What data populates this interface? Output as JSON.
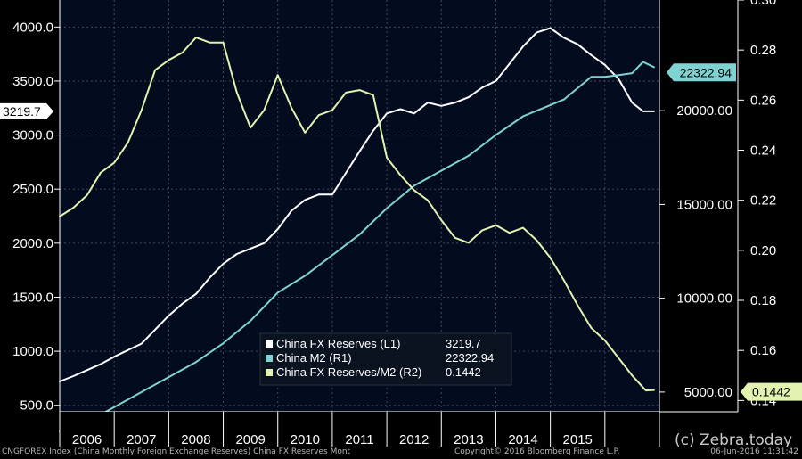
{
  "chart_data": {
    "type": "line",
    "x_labels": [
      "2006",
      "2007",
      "2008",
      "2009",
      "2010",
      "2011",
      "2012",
      "2013",
      "2014",
      "2015"
    ],
    "x_range": [
      2005.5,
      2016.5
    ],
    "left_axis": {
      "ticks": [
        "500.0",
        "1000.0",
        "1500.0",
        "2000.0",
        "2500.0",
        "3000.0",
        "3500.0",
        "4000.0"
      ],
      "range": [
        440,
        4250
      ]
    },
    "right1_axis": {
      "ticks": [
        "5000.00",
        "10000.00",
        "15000.00",
        "20000.00"
      ],
      "range": [
        3950,
        25900
      ]
    },
    "right2_axis": {
      "ticks": [
        "0.14",
        "0.16",
        "0.18",
        "0.20",
        "0.22",
        "0.24",
        "0.26",
        "0.28",
        "0.30"
      ],
      "range": [
        0.1355,
        0.3
      ]
    },
    "series": [
      {
        "name": "China FX Reserves (L1)",
        "axis": "left",
        "color": "#ffffff",
        "last_value_label": "3219.7",
        "points": [
          [
            2005.5,
            720
          ],
          [
            2005.75,
            770
          ],
          [
            2006.0,
            825
          ],
          [
            2006.25,
            880
          ],
          [
            2006.5,
            950
          ],
          [
            2006.75,
            1010
          ],
          [
            2007.0,
            1070
          ],
          [
            2007.25,
            1200
          ],
          [
            2007.5,
            1330
          ],
          [
            2007.75,
            1440
          ],
          [
            2008.0,
            1530
          ],
          [
            2008.25,
            1680
          ],
          [
            2008.5,
            1810
          ],
          [
            2008.75,
            1900
          ],
          [
            2009.0,
            1950
          ],
          [
            2009.25,
            2000
          ],
          [
            2009.5,
            2130
          ],
          [
            2009.75,
            2300
          ],
          [
            2010.0,
            2400
          ],
          [
            2010.25,
            2450
          ],
          [
            2010.5,
            2450
          ],
          [
            2010.75,
            2650
          ],
          [
            2011.0,
            2850
          ],
          [
            2011.25,
            3040
          ],
          [
            2011.5,
            3200
          ],
          [
            2011.75,
            3240
          ],
          [
            2012.0,
            3200
          ],
          [
            2012.25,
            3300
          ],
          [
            2012.5,
            3270
          ],
          [
            2012.75,
            3300
          ],
          [
            2013.0,
            3350
          ],
          [
            2013.25,
            3440
          ],
          [
            2013.5,
            3500
          ],
          [
            2013.75,
            3660
          ],
          [
            2014.0,
            3820
          ],
          [
            2014.25,
            3950
          ],
          [
            2014.5,
            3990
          ],
          [
            2014.75,
            3900
          ],
          [
            2015.0,
            3840
          ],
          [
            2015.25,
            3740
          ],
          [
            2015.5,
            3650
          ],
          [
            2015.75,
            3520
          ],
          [
            2016.0,
            3300
          ],
          [
            2016.2,
            3220
          ],
          [
            2016.4,
            3219.7
          ]
        ]
      },
      {
        "name": "China M2 (R1)",
        "axis": "right1",
        "color": "#7fd3d3",
        "last_value_label": "22322.94",
        "points": [
          [
            2005.5,
            2900
          ],
          [
            2006.0,
            3400
          ],
          [
            2006.5,
            4200
          ],
          [
            2007.0,
            5000
          ],
          [
            2007.5,
            5800
          ],
          [
            2008.0,
            6600
          ],
          [
            2008.5,
            7600
          ],
          [
            2008.75,
            8200
          ],
          [
            2009.0,
            8800
          ],
          [
            2009.5,
            10300
          ],
          [
            2010.0,
            11200
          ],
          [
            2010.5,
            12300
          ],
          [
            2011.0,
            13400
          ],
          [
            2011.5,
            14800
          ],
          [
            2012.0,
            16000
          ],
          [
            2012.5,
            16800
          ],
          [
            2013.0,
            17600
          ],
          [
            2013.5,
            18700
          ],
          [
            2014.0,
            19700
          ],
          [
            2014.5,
            20300
          ],
          [
            2014.75,
            20600
          ],
          [
            2015.0,
            21200
          ],
          [
            2015.25,
            21800
          ],
          [
            2015.5,
            21800
          ],
          [
            2015.75,
            21900
          ],
          [
            2016.0,
            22000
          ],
          [
            2016.2,
            22600
          ],
          [
            2016.4,
            22322.94
          ]
        ]
      },
      {
        "name": "China FX Reserves/M2 (R2)",
        "axis": "right2",
        "color": "#e2f2b0",
        "last_value_label": "0.1442",
        "points": [
          [
            2005.5,
            0.2135
          ],
          [
            2005.75,
            0.217
          ],
          [
            2006.0,
            0.222
          ],
          [
            2006.25,
            0.231
          ],
          [
            2006.5,
            0.235
          ],
          [
            2006.75,
            0.243
          ],
          [
            2007.0,
            0.256
          ],
          [
            2007.25,
            0.272
          ],
          [
            2007.5,
            0.276
          ],
          [
            2007.75,
            0.279
          ],
          [
            2008.0,
            0.285
          ],
          [
            2008.25,
            0.283
          ],
          [
            2008.5,
            0.283
          ],
          [
            2008.75,
            0.263
          ],
          [
            2009.0,
            0.249
          ],
          [
            2009.25,
            0.256
          ],
          [
            2009.5,
            0.27
          ],
          [
            2009.75,
            0.257
          ],
          [
            2010.0,
            0.247
          ],
          [
            2010.25,
            0.254
          ],
          [
            2010.5,
            0.256
          ],
          [
            2010.75,
            0.263
          ],
          [
            2011.0,
            0.264
          ],
          [
            2011.25,
            0.262
          ],
          [
            2011.5,
            0.237
          ],
          [
            2011.75,
            0.23
          ],
          [
            2012.0,
            0.224
          ],
          [
            2012.25,
            0.22
          ],
          [
            2012.5,
            0.212
          ],
          [
            2012.75,
            0.205
          ],
          [
            2013.0,
            0.203
          ],
          [
            2013.25,
            0.208
          ],
          [
            2013.5,
            0.21
          ],
          [
            2013.75,
            0.207
          ],
          [
            2014.0,
            0.209
          ],
          [
            2014.25,
            0.204
          ],
          [
            2014.5,
            0.197
          ],
          [
            2014.75,
            0.188
          ],
          [
            2015.0,
            0.178
          ],
          [
            2015.25,
            0.169
          ],
          [
            2015.5,
            0.164
          ],
          [
            2015.75,
            0.157
          ],
          [
            2016.0,
            0.15
          ],
          [
            2016.25,
            0.144
          ],
          [
            2016.4,
            0.1442
          ]
        ]
      }
    ],
    "legend": {
      "placement": "bottom-center",
      "entries": [
        {
          "label": "China FX Reserves (L1)",
          "value": "3219.7",
          "color": "#ffffff"
        },
        {
          "label": "China M2 (R1)",
          "value": "22322.94",
          "color": "#7fd3d3"
        },
        {
          "label": "China FX Reserves/M2 (R2)",
          "value": "0.1442",
          "color": "#e2f2b0"
        }
      ]
    },
    "grid": true,
    "background_color": "#030c1e",
    "axis_color": "#ffffff",
    "grid_color": "#40485a"
  },
  "footer": {
    "left": "CNGFOREX Index (China Monthly Foreign Exchange Reserves) China FX Reserves  Mont",
    "middle": "Copyright© 2016 Bloomberg Finance L.P.",
    "right": "06-Jun-2016 11:31:42"
  },
  "watermark": "(c) Zebra.today"
}
